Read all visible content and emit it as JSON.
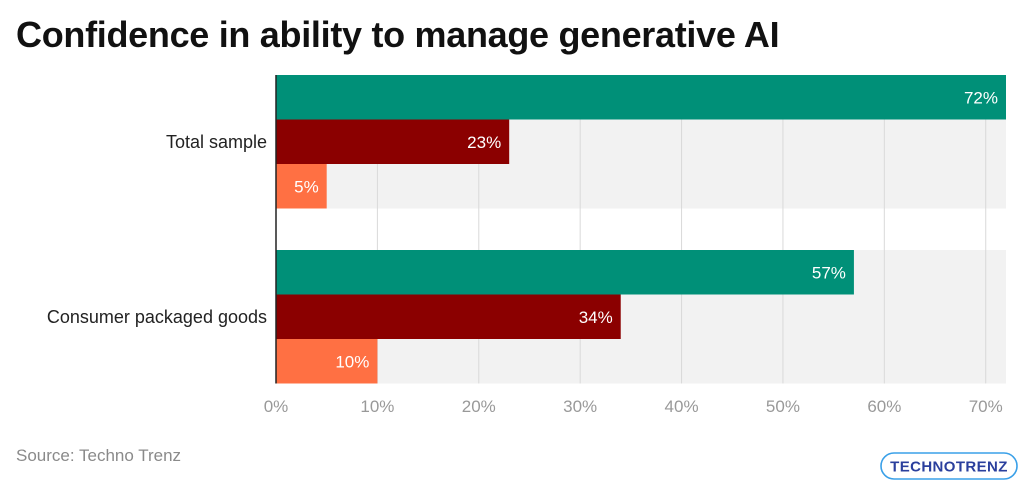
{
  "title": "Confidence in ability to manage generative AI",
  "source": "Source: Techno Trenz",
  "logo_text": "TECHNOTRENZ",
  "chart_data": {
    "type": "bar",
    "orientation": "horizontal",
    "title": "Confidence in ability to manage generative AI",
    "categories": [
      "Total sample",
      "Consumer packaged goods"
    ],
    "series": [
      {
        "color": "#009078",
        "values": [
          72,
          57
        ]
      },
      {
        "color": "#8b0000",
        "values": [
          23,
          34
        ]
      },
      {
        "color": "#ff7043",
        "values": [
          5,
          10
        ]
      }
    ],
    "value_suffix": "%",
    "xlim": [
      0,
      72
    ],
    "xticks": [
      0,
      10,
      20,
      30,
      40,
      50,
      60,
      70
    ],
    "xtick_labels": [
      "0%",
      "10%",
      "20%",
      "30%",
      "40%",
      "50%",
      "60%",
      "70%"
    ],
    "grid": true,
    "legend": "none",
    "band_color": "#f2f2f2"
  },
  "colors": {
    "logo_blue": "#2a3f9d",
    "logo_accent": "#3aa0e8",
    "source_text": "#8a8a8a",
    "tick_text": "#999999"
  }
}
